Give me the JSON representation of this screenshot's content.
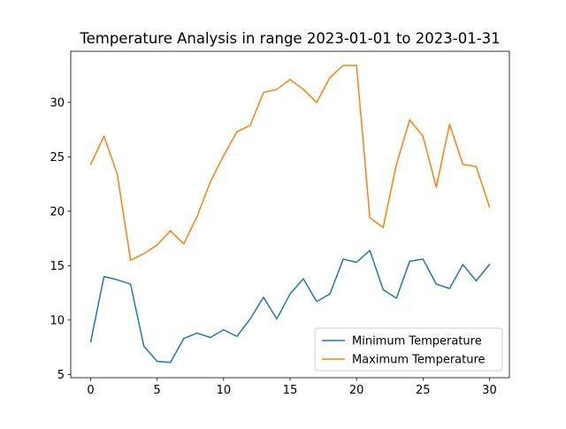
{
  "chart_data": {
    "type": "line",
    "title": "Temperature Analysis in range 2023-01-01 to 2023-01-31",
    "xlabel": "",
    "ylabel": "",
    "x": [
      0,
      1,
      2,
      3,
      4,
      5,
      6,
      7,
      8,
      9,
      10,
      11,
      12,
      13,
      14,
      15,
      16,
      17,
      18,
      19,
      20,
      21,
      22,
      23,
      24,
      25,
      26,
      27,
      28,
      29,
      30
    ],
    "xlim": [
      -1.5,
      31.5
    ],
    "ylim": [
      4.7,
      34.7
    ],
    "xticks": [
      0,
      5,
      10,
      15,
      20,
      25,
      30
    ],
    "yticks": [
      5,
      10,
      15,
      20,
      25,
      30
    ],
    "grid": false,
    "legend_position": "lower-right",
    "series": [
      {
        "name": "Minimum Temperature",
        "color": "#1f77b4",
        "values": [
          8.0,
          14.0,
          13.7,
          13.3,
          7.6,
          6.2,
          6.1,
          8.3,
          8.8,
          8.4,
          9.1,
          8.5,
          10.1,
          12.1,
          10.1,
          12.4,
          13.8,
          11.7,
          12.4,
          15.6,
          15.3,
          16.4,
          12.8,
          12.0,
          15.4,
          15.6,
          13.3,
          12.9,
          15.1,
          13.6,
          15.1
        ]
      },
      {
        "name": "Maximum Temperature",
        "color": "#ff7f0e",
        "values": [
          24.3,
          26.9,
          23.4,
          15.5,
          16.1,
          16.9,
          18.2,
          17.0,
          19.5,
          22.7,
          25.1,
          27.3,
          27.9,
          30.9,
          31.2,
          32.1,
          31.2,
          30.0,
          32.3,
          33.4,
          33.4,
          19.4,
          18.5,
          24.3,
          28.4,
          26.9,
          22.2,
          28.0,
          24.3,
          24.1,
          20.4
        ]
      }
    ]
  }
}
